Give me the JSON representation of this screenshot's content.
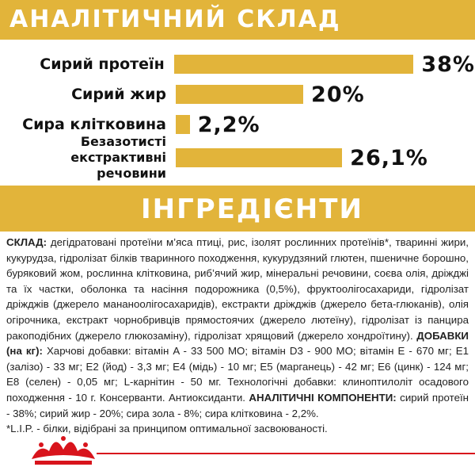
{
  "chart_data": {
    "type": "bar",
    "title": "АНАЛІТИЧНИЙ СКЛАД",
    "categories": [
      "Сирий протеїн",
      "Сирий жир",
      "Сира клітковина",
      "Безазотисті екстрактивні речовини"
    ],
    "values": [
      38,
      20,
      2.2,
      26.1
    ],
    "value_labels": [
      "38%",
      "20%",
      "2,2%",
      "26,1%"
    ],
    "color": "#e2b43a"
  },
  "ingredients": {
    "title": "ІНГРЕДІЄНТИ",
    "runs": [
      {
        "text": "СКЛАД:",
        "bold": true
      },
      {
        "text": " дегідратовані протеїни м’яса птиці, рис, ізолят рослинних протеїнів*, тваринні жири, кукурудза, гідролізат білків тваринного походження, кукурудзяний глютен, пшеничне борошно, буряковий жом, рослинна клітковина, риб’ячий жир, мінеральні речовини, соєва олія, дріжджі та їх частки, оболонка та насіння подорожника (0,5%), фруктоолігосахариди, гідролізат дріжджів (джерело мананоолігосахаридів), екстракти дріжджів (джерело бета-глюканів), олія огірочника, екстракт чорнобривців прямостоячих (джерело лютеїну), гідролізат із панцира ракоподібних (джерело глюкозаміну), гідролізат хрящовий (джерело хондроїтину). ",
        "bold": false
      },
      {
        "text": "ДОБАВКИ (на кг):",
        "bold": true
      },
      {
        "text": " Харчові добавки: вітамін A - 33 500 МО; вітамін D3 - 900 МО; вітамін E - 670 мг; E1 (залізо) - 33 мг; E2 (йод) - 3,3 мг; E4 (мідь) - 10 мг; E5 (марганець) - 42 мг; E6 (цинк) - 124 мг; E8 (селен) - 0,05 мг; L-карнітин - 50 мг. Технологічні добавки: клиноптилоліт осадового походження - 10 г. Консерванти. Антиоксиданти. ",
        "bold": false
      },
      {
        "text": "АНАЛІТИЧНІ КОМПОНЕНТИ:",
        "bold": true
      },
      {
        "text": " сирий протеїн - 38%; сирий жир - 20%; сира зола - 8%; сира клітковина - 2,2%.",
        "bold": false
      }
    ],
    "footnote": "*L.I.P. - білки, відібрані за принципом оптимальної засвоюваності."
  }
}
